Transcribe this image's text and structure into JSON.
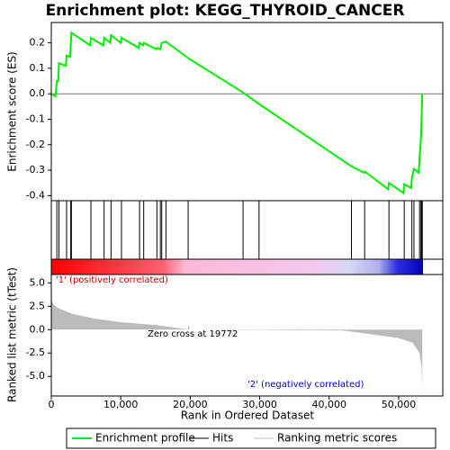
{
  "chart_data": {
    "type": "gsea",
    "title": "Enrichment plot: KEGG_THYROID_CANCER",
    "y_label": "Enrichment score (ES)",
    "y2_label": "Ranked list metric (tTest)",
    "x_label": "Rank in Ordered Dataset",
    "xlim": [
      0,
      56350
    ],
    "xticks": [
      0,
      {
        "value": 10000,
        "label": "10,000"
      },
      {
        "value": 20000,
        "label": "20,000"
      },
      {
        "value": 30000,
        "label": "30,000"
      },
      {
        "value": 40000,
        "label": "40,000"
      },
      {
        "value": 50000,
        "label": "50,000"
      }
    ],
    "ylim": [
      -0.42,
      0.28
    ],
    "yticks": [
      0.2,
      0.1,
      {
        "value": 0,
        "label": "0.0"
      },
      -0.1,
      -0.2,
      -0.3,
      -0.4
    ],
    "y2lim": [
      -7.1,
      5.9
    ],
    "y2ticks": [
      {
        "value": 5,
        "label": "5.0"
      },
      2.5,
      {
        "value": 0,
        "label": "0.0"
      },
      -2.5,
      {
        "value": -5,
        "label": "-5.0"
      }
    ],
    "series": [
      {
        "name": "Enrichment profile",
        "color": "#00ee00",
        "x": [
          0,
          600,
          800,
          1000,
          1100,
          2100,
          2200,
          2700,
          2800,
          2900,
          5600,
          5700,
          7500,
          7600,
          8500,
          8600,
          10000,
          10100,
          12600,
          12700,
          13200,
          13300,
          15100,
          15200,
          15700,
          15900,
          16500,
          19700,
          27600,
          29900,
          43200,
          45000,
          45100,
          48500,
          48600,
          50700,
          50800,
          51800,
          51900,
          52200,
          52900,
          53000,
          53200,
          53300,
          53400
        ],
        "values": [
          0,
          -0.01,
          0.05,
          0.05,
          0.12,
          0.11,
          0.15,
          0.145,
          0.19,
          0.24,
          0.19,
          0.22,
          0.19,
          0.22,
          0.2,
          0.23,
          0.2,
          0.22,
          0.18,
          0.2,
          0.19,
          0.2,
          0.175,
          0.18,
          0.175,
          0.2,
          0.205,
          0.14,
          0.005,
          -0.04,
          -0.285,
          -0.31,
          -0.305,
          -0.375,
          -0.35,
          -0.39,
          -0.355,
          -0.37,
          -0.33,
          -0.295,
          -0.31,
          -0.25,
          -0.18,
          -0.09,
          0
        ]
      },
      {
        "name": "Hits",
        "color": "#000000",
        "x": [
          800,
          1100,
          2200,
          2800,
          2900,
          5700,
          7600,
          8600,
          10100,
          12700,
          13300,
          15200,
          15700,
          15900,
          16500,
          19700,
          27600,
          29900,
          43200,
          45100,
          48600,
          50800,
          51900,
          52200,
          53000,
          53200,
          53300,
          53400
        ]
      },
      {
        "name": "Ranking metric scores",
        "color": "#bbbbbb",
        "x": [
          0,
          300,
          1000,
          3000,
          6000,
          10000,
          15000,
          19772,
          30000,
          42000,
          45000,
          48000,
          50000,
          52000,
          53000,
          53300,
          53400
        ],
        "values": [
          3.3,
          2.7,
          2.3,
          1.7,
          1.2,
          0.8,
          0.5,
          0,
          -0.03,
          -0.1,
          -0.4,
          -0.7,
          -0.9,
          -1.4,
          -2.5,
          -4,
          -6.3
        ]
      }
    ],
    "zero_cross": 19772,
    "annotations": [
      "'1' (positively correlated)",
      "Zero cross at 19772",
      "'2' (negatively correlated)"
    ]
  }
}
